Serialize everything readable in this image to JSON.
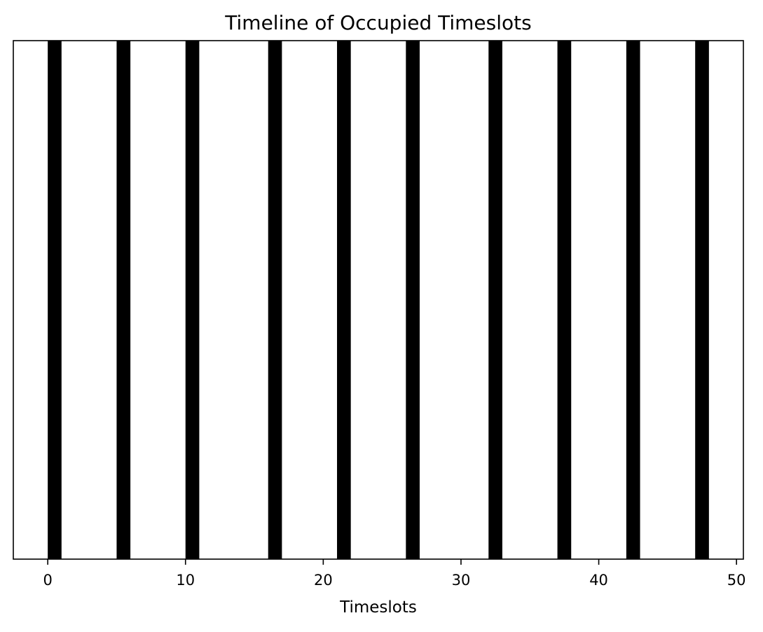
{
  "chart_data": {
    "type": "bar",
    "title": "Timeline of Occupied Timeslots",
    "xlabel": "Timeslots",
    "ylabel": "",
    "occupied_timeslots": [
      0,
      5,
      10,
      16,
      21,
      26,
      32,
      37,
      42,
      47
    ],
    "bar_width": 1,
    "xlim": [
      -2.5,
      50.5
    ],
    "ylim": [
      0,
      1
    ],
    "xticks": [
      0,
      10,
      20,
      30,
      40,
      50
    ],
    "yticks_visible": false,
    "grid": false,
    "legend": "none",
    "bar_color": "#000000"
  }
}
